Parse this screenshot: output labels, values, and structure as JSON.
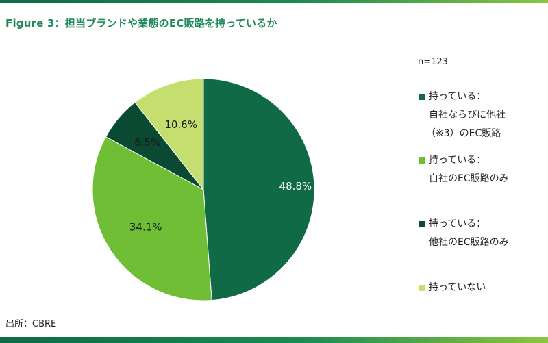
{
  "title": "Figure 3：担当ブランドや業態のEC販路を持っているか",
  "sample_size": "n=123",
  "source": "出所：CBRE",
  "colors": {
    "dark_green": "#0f6a45",
    "light_green": "#6fbe36",
    "darkest_green": "#0b4a32",
    "lime": "#c4df6f",
    "title_green": "#1f8a5a"
  },
  "legend": [
    {
      "line1": "持っている：",
      "line2": "自社ならびに他社",
      "line3": "（※3）のEC販路",
      "color": "#0f6a45"
    },
    {
      "line1": "持っている：",
      "line2": "自社のEC販路のみ",
      "line3": "",
      "color": "#6fbe36"
    },
    {
      "line1": "持っている：",
      "line2": "他社のEC販路のみ",
      "line3": "",
      "color": "#0b4a32"
    },
    {
      "line1": "持っていない",
      "line2": "",
      "line3": "",
      "color": "#c4df6f"
    }
  ],
  "chart_data": {
    "type": "pie",
    "title": "Figure 3：担当ブランドや業態のEC販路を持っているか",
    "start": "12 o'clock",
    "direction": "clockwise",
    "slices": [
      {
        "label": "持っている：自社ならびに他社（※3）のEC販路",
        "value": 48.8,
        "display": "48.8%",
        "color": "#0f6a45"
      },
      {
        "label": "持っている：自社のEC販路のみ",
        "value": 34.1,
        "display": "34.1%",
        "color": "#6fbe36"
      },
      {
        "label": "持っている：他社のEC販路のみ",
        "value": 6.5,
        "display": "6.5%",
        "color": "#0b4a32"
      },
      {
        "label": "持っていない",
        "value": 10.6,
        "display": "10.6%",
        "color": "#c4df6f"
      }
    ],
    "legend_position": "right",
    "sample_size": "n=123"
  }
}
